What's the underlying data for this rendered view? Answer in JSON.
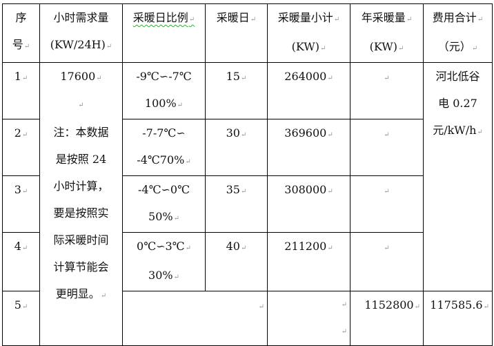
{
  "headers": {
    "seq": [
      "序",
      "号"
    ],
    "hourly": [
      "小时需求量",
      "(KW/24H)"
    ],
    "ratio": "采暖日比例",
    "days": "采暖日",
    "subtotal": [
      "采暖量小计",
      "(KW)"
    ],
    "annual": [
      "年采暖量",
      "(KW)"
    ],
    "cost": [
      "费用合计",
      "（元）"
    ]
  },
  "hourly_value": "17600",
  "note_lines": [
    "注：本数据",
    "是按照 24",
    "小时计算，",
    "要是按照实",
    "际采暖时间",
    "计算节能会",
    "更明显。"
  ],
  "price_lines": [
    "河北低谷",
    "电 0.27",
    "元/kW/h"
  ],
  "rows": [
    {
      "seq": "1",
      "ratio": [
        "-9℃∽-7℃",
        "100%"
      ],
      "days": "15",
      "subtotal": "264000"
    },
    {
      "seq": "2",
      "ratio": [
        "-7-7℃∽",
        "-4℃70%"
      ],
      "days": "30",
      "subtotal": "369600"
    },
    {
      "seq": "3",
      "ratio": [
        "-4℃∽0℃",
        "50%"
      ],
      "days": "35",
      "subtotal": "308000"
    },
    {
      "seq": "4",
      "ratio": [
        "0℃∽3℃",
        "30%"
      ],
      "days": "40",
      "subtotal": "211200"
    }
  ],
  "total_row": {
    "seq": "5",
    "annual": "1152800",
    "cost": "117585.6"
  }
}
